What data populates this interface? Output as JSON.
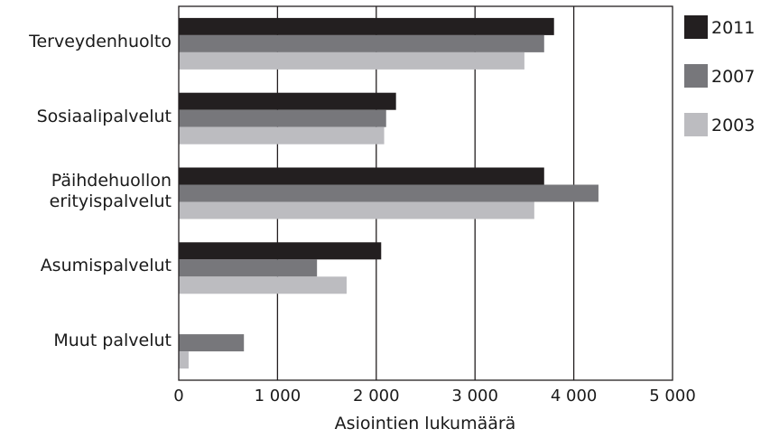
{
  "chart_data": {
    "type": "bar",
    "orientation": "horizontal",
    "categories": [
      "Terveydenhuolto",
      "Sosiaalipalvelut",
      "Päihdehuollon erityispalvelut",
      "Asumispalvelut",
      "Muut palvelut"
    ],
    "category_lines": [
      [
        "Terveydenhuolto"
      ],
      [
        "Sosiaalipalvelut"
      ],
      [
        "Päihdehuollon",
        "erityispalvelut"
      ],
      [
        "Asumispalvelut"
      ],
      [
        "Muut palvelut"
      ]
    ],
    "series": [
      {
        "name": "2011",
        "color": "#231f20",
        "values": [
          3800,
          2200,
          3700,
          2050,
          0
        ]
      },
      {
        "name": "2007",
        "color": "#77777b",
        "values": [
          3700,
          2100,
          4250,
          1400,
          660
        ]
      },
      {
        "name": "2003",
        "color": "#bcbcc0",
        "values": [
          3500,
          2080,
          3600,
          1700,
          100
        ]
      }
    ],
    "xlim": [
      0,
      5000
    ],
    "xticks": [
      0,
      1000,
      2000,
      3000,
      4000,
      5000
    ],
    "xtick_labels": [
      "0",
      "1 000",
      "2 000",
      "3 000",
      "4 000",
      "5 000"
    ],
    "xlabel": "Asiointien lukumäärä",
    "ylabel": "",
    "title": "",
    "grid": "vertical",
    "legend": "right"
  }
}
